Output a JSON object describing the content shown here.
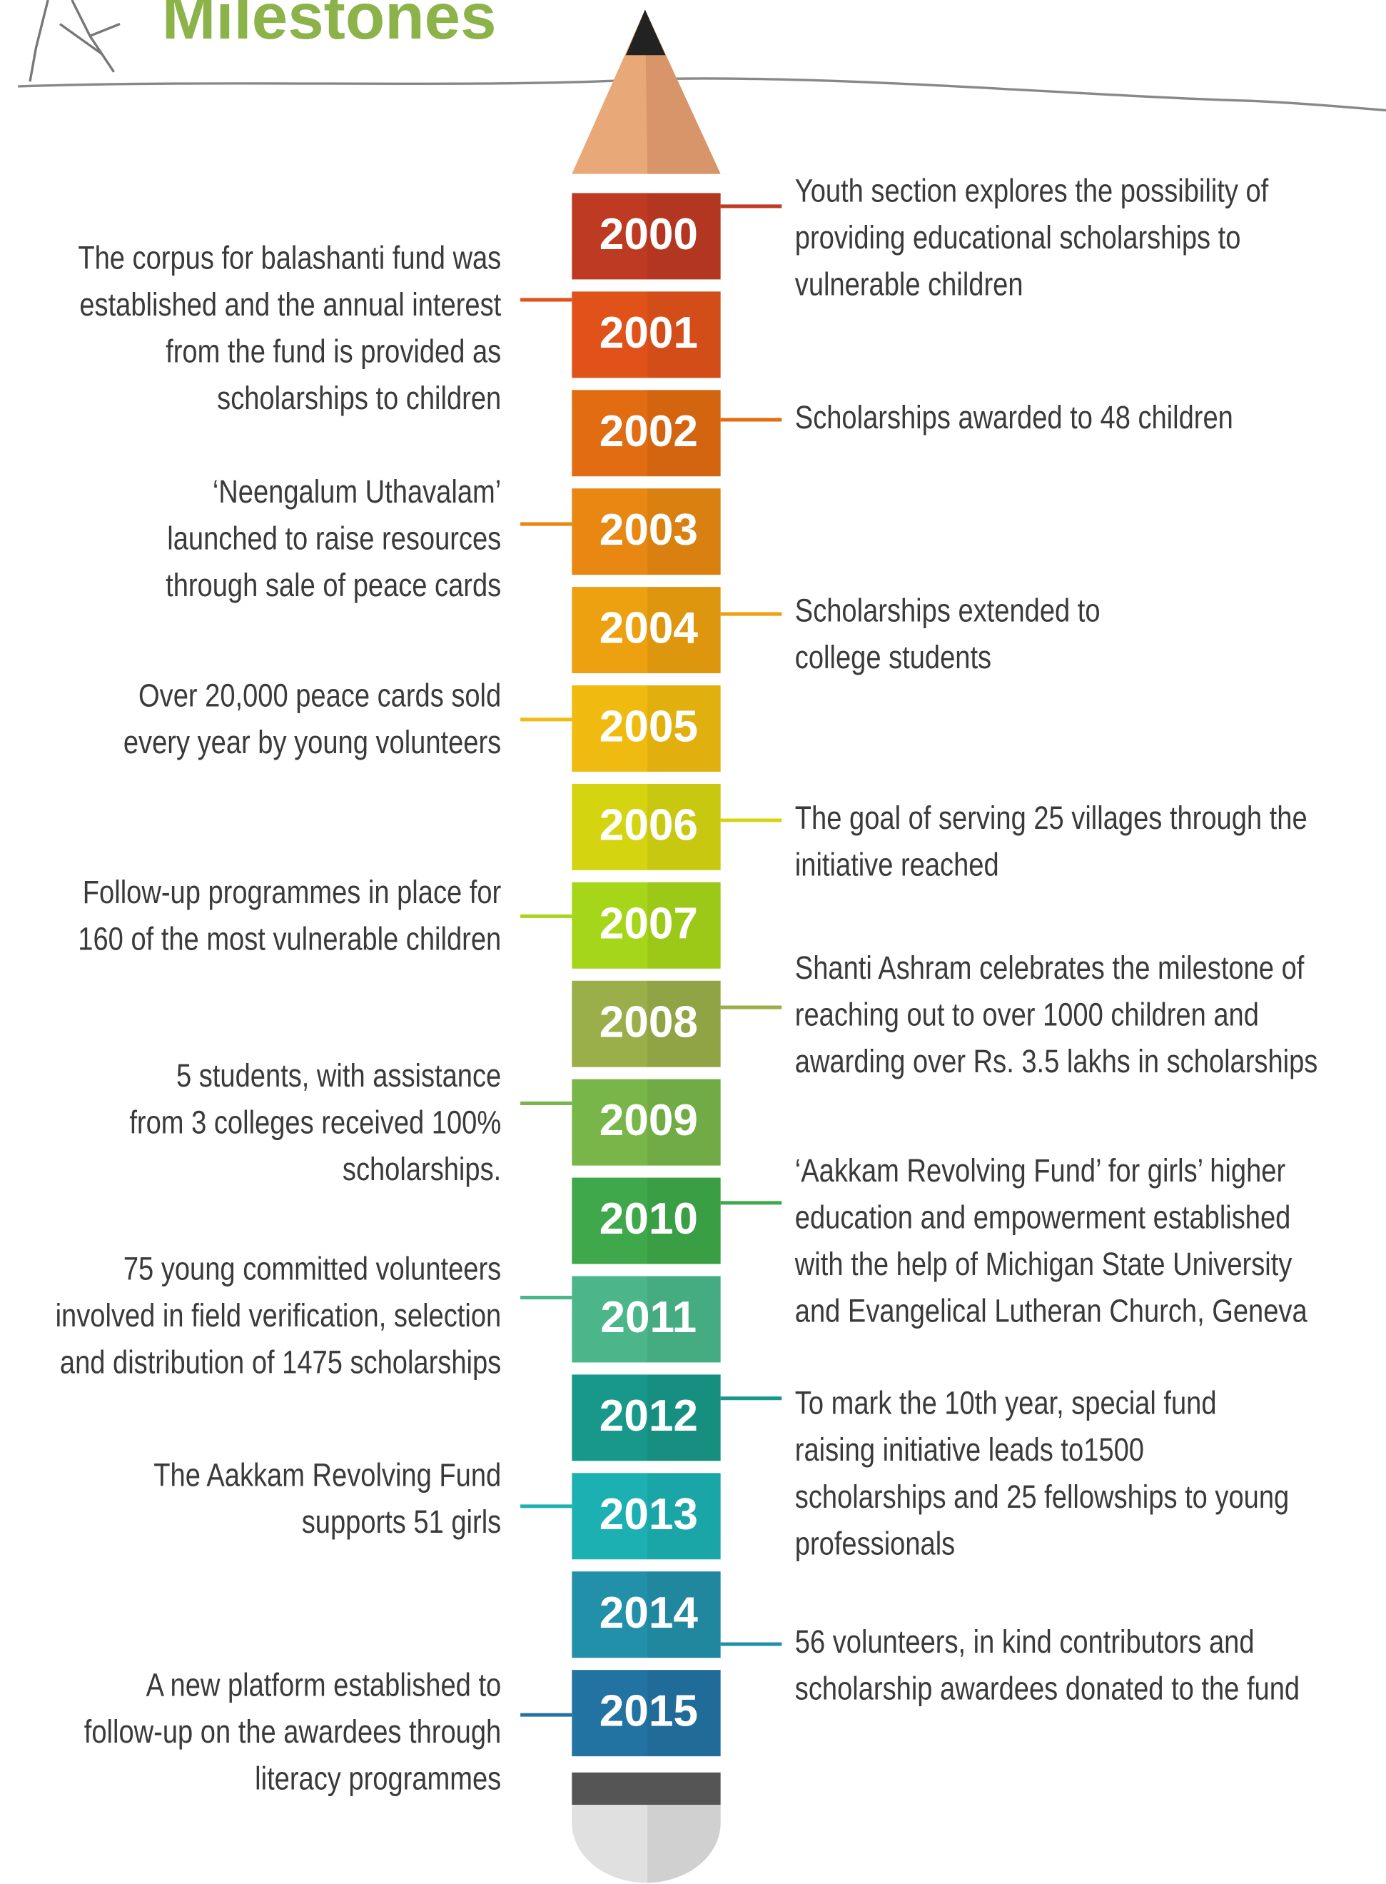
{
  "header": {
    "title": "Milestones"
  },
  "timeline": [
    {
      "year": "2000",
      "color": "#bf3a22",
      "side": "right",
      "lines": [
        "Youth section explores the possibility of",
        "providing educational scholarships to",
        "vulnerable children"
      ]
    },
    {
      "year": "2001",
      "color": "#e0521a",
      "side": "left",
      "lines": [
        "The corpus for balashanti fund was",
        "established and the annual interest",
        "from the fund is provided as",
        "scholarships to children"
      ]
    },
    {
      "year": "2002",
      "color": "#e26c12",
      "side": "right",
      "lines": [
        "Scholarships awarded to 48 children"
      ]
    },
    {
      "year": "2003",
      "color": "#e88812",
      "side": "left",
      "lines": [
        "‘Neengalum Uthavalam’",
        "launched to raise resources",
        "through sale of peace cards"
      ]
    },
    {
      "year": "2004",
      "color": "#eda010",
      "side": "right",
      "lines": [
        "Scholarships extended to",
        "college students"
      ]
    },
    {
      "year": "2005",
      "color": "#f0bb10",
      "side": "left",
      "lines": [
        "Over 20,000 peace cards sold",
        "every year by young volunteers"
      ]
    },
    {
      "year": "2006",
      "color": "#d4d510",
      "side": "right",
      "lines": [
        "The goal of serving 25 villages through the",
        "initiative reached"
      ]
    },
    {
      "year": "2007",
      "color": "#a6d61a",
      "side": "left",
      "lines": [
        "Follow-up programmes in place for",
        "160 of the most vulnerable children"
      ]
    },
    {
      "year": "2008",
      "color": "#9aae4a",
      "side": "right",
      "lines": [
        "Shanti Ashram celebrates the milestone of",
        "reaching out to over 1000 children and",
        "awarding over Rs. 3.5 lakhs in scholarships"
      ]
    },
    {
      "year": "2009",
      "color": "#78b64a",
      "side": "left",
      "lines": [
        "5 students, with assistance",
        "from 3 colleges received 100%",
        "scholarships."
      ]
    },
    {
      "year": "2010",
      "color": "#3ea84a",
      "side": "right",
      "lines": [
        "‘Aakkam Revolving Fund’ for girls’ higher",
        "education and empowerment established",
        "with the help of Michigan State University",
        "and Evangelical Lutheran Church, Geneva"
      ]
    },
    {
      "year": "2011",
      "color": "#4ab68a",
      "side": "left",
      "lines": [
        "75 young committed volunteers",
        "involved in field verification, selection",
        "and distribution of 1475 scholarships"
      ]
    },
    {
      "year": "2012",
      "color": "#18988a",
      "side": "right",
      "lines": [
        "To mark the 10th year, special fund",
        "raising initiative leads to1500",
        "scholarships and 25 fellowships to young",
        "professionals"
      ]
    },
    {
      "year": "2013",
      "color": "#1cb0b2",
      "side": "left",
      "lines": [
        "The Aakkam Revolving Fund",
        "supports 51 girls"
      ]
    },
    {
      "year": "2014",
      "color": "#2290a8",
      "side": "right",
      "lines": [
        "56 volunteers, in kind contributors and",
        "scholarship awardees donated to the fund"
      ]
    },
    {
      "year": "2015",
      "color": "#2272a2",
      "side": "left",
      "lines": [
        "A new platform established to",
        "follow-up on the awardees through",
        "literacy programmes"
      ]
    }
  ]
}
